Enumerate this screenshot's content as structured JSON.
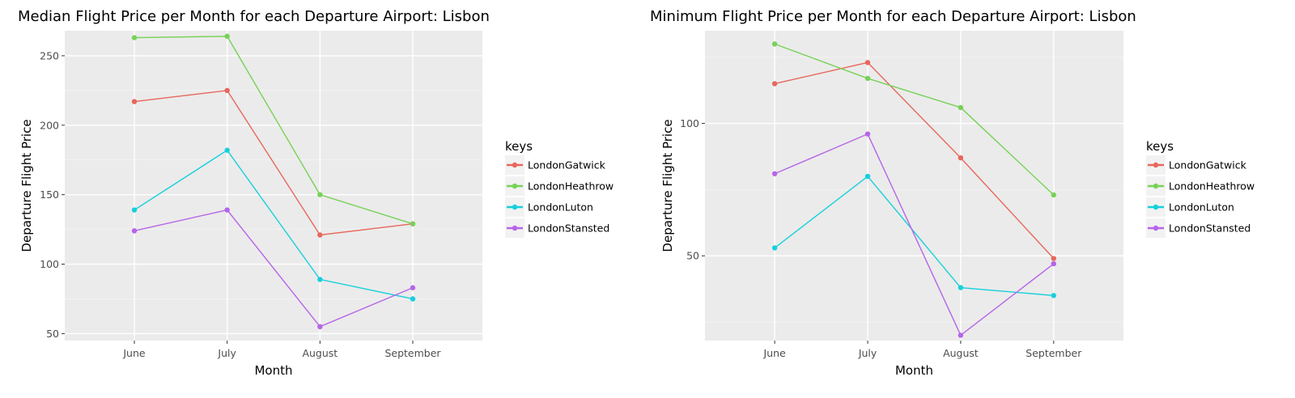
{
  "chart_data": [
    {
      "type": "line",
      "title": "Median Flight Price per Month for each Departure Airport: Lisbon",
      "xlabel": "Month",
      "ylabel": "Departure Flight Price",
      "categories": [
        "June",
        "July",
        "August",
        "September"
      ],
      "yticks": [
        50,
        100,
        150,
        200,
        250
      ],
      "ylim": [
        45,
        268
      ],
      "grid": true,
      "legend_title": "keys",
      "legend_position": "right",
      "series": [
        {
          "name": "LondonGatwick",
          "color": "#F8766D",
          "values": [
            217,
            225,
            121,
            129
          ]
        },
        {
          "name": "LondonHeathrow",
          "color": "#7CAE00",
          "values": [
            263,
            264,
            150,
            129
          ]
        },
        {
          "name": "LondonLuton",
          "color": "#00BFC4",
          "values": [
            139,
            182,
            89,
            75
          ]
        },
        {
          "name": "LondonStansted",
          "color": "#C77CFF",
          "values": [
            124,
            139,
            55,
            83
          ]
        }
      ]
    },
    {
      "type": "line",
      "title": "Minimum Flight Price per Month for each Departure Airport: Lisbon",
      "xlabel": "Month",
      "ylabel": "Departure Flight Price",
      "categories": [
        "June",
        "July",
        "August",
        "September"
      ],
      "yticks": [
        50,
        100
      ],
      "ylim": [
        18,
        135
      ],
      "grid": true,
      "legend_title": "keys",
      "legend_position": "right",
      "series": [
        {
          "name": "LondonGatwick",
          "color": "#F8766D",
          "values": [
            115,
            123,
            87,
            49
          ]
        },
        {
          "name": "LondonHeathrow",
          "color": "#7CAE00",
          "values": [
            130,
            117,
            106,
            73
          ]
        },
        {
          "name": "LondonLuton",
          "color": "#00BFC4",
          "values": [
            53,
            80,
            38,
            35
          ]
        },
        {
          "name": "LondonStansted",
          "color": "#C77CFF",
          "values": [
            81,
            96,
            20,
            47
          ]
        }
      ]
    }
  ]
}
